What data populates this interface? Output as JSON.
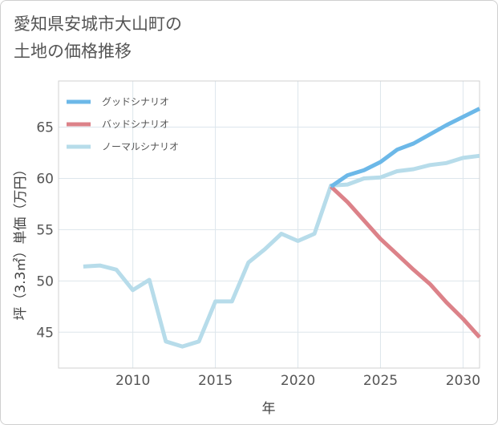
{
  "header": {
    "title_line1": "愛知県安城市大山町の",
    "title_line2": "土地の価格推移"
  },
  "chart_data": {
    "type": "line",
    "title": "愛知県安城市大山町の土地の価格推移",
    "xlabel": "年",
    "ylabel": "坪（3.3㎡）単価（万円）",
    "xlim": [
      2005.5,
      2031
    ],
    "ylim": [
      41.5,
      69.5
    ],
    "xticks": [
      2010,
      2015,
      2020,
      2025,
      2030
    ],
    "yticks": [
      45,
      50,
      55,
      60,
      65
    ],
    "legend_position": "top-left",
    "series": [
      {
        "name": "グッドシナリオ",
        "color": "#6cb8e8",
        "x": [
          2022,
          2023,
          2024,
          2025,
          2026,
          2027,
          2028,
          2029,
          2030,
          2031
        ],
        "y": [
          59.2,
          60.3,
          60.8,
          61.6,
          62.8,
          63.4,
          64.3,
          65.2,
          66.0,
          66.8
        ]
      },
      {
        "name": "バッドシナリオ",
        "color": "#dc8289",
        "x": [
          2022,
          2023,
          2024,
          2025,
          2026,
          2027,
          2028,
          2029,
          2030,
          2031
        ],
        "y": [
          59.2,
          57.7,
          55.9,
          54.1,
          52.6,
          51.1,
          49.7,
          47.9,
          46.3,
          44.5
        ]
      },
      {
        "name": "ノーマルシナリオ",
        "color": "#b7dcea",
        "x": [
          2007,
          2008,
          2009,
          2010,
          2011,
          2012,
          2013,
          2014,
          2015,
          2016,
          2017,
          2018,
          2019,
          2020,
          2021,
          2022,
          2023,
          2024,
          2025,
          2026,
          2027,
          2028,
          2029,
          2030,
          2031
        ],
        "y": [
          51.4,
          51.5,
          51.1,
          49.1,
          50.1,
          44.1,
          43.6,
          44.1,
          48.0,
          48.0,
          51.8,
          53.1,
          54.6,
          53.9,
          54.6,
          59.3,
          59.4,
          60.0,
          60.1,
          60.7,
          60.9,
          61.3,
          61.5,
          62.0,
          62.2
        ]
      }
    ]
  }
}
